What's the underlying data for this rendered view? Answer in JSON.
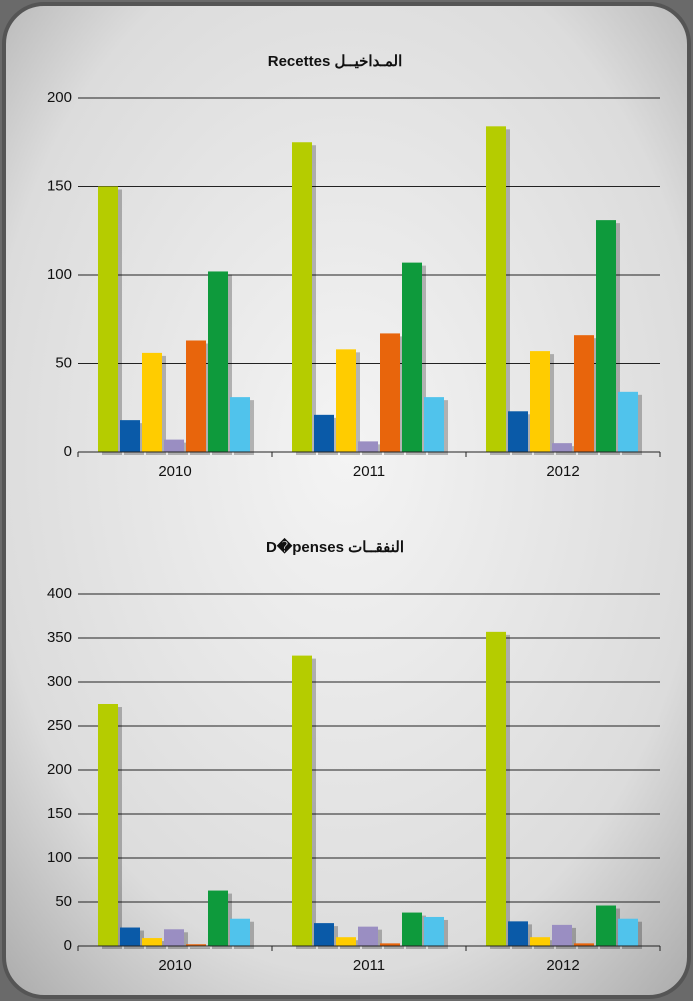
{
  "chart_data": [
    {
      "type": "bar",
      "title": "Recettes المـداخيــل",
      "categories": [
        "2010",
        "2011",
        "2012"
      ],
      "series": [
        {
          "color": "#b5cc00",
          "values": [
            150,
            175,
            184
          ]
        },
        {
          "color": "#0a5aa8",
          "values": [
            18,
            21,
            23
          ]
        },
        {
          "color": "#ffcc00",
          "values": [
            56,
            58,
            57
          ]
        },
        {
          "color": "#9a8ec2",
          "values": [
            7,
            6,
            5
          ]
        },
        {
          "color": "#e8650c",
          "values": [
            63,
            67,
            66
          ]
        },
        {
          "color": "#0e9a3c",
          "values": [
            102,
            107,
            131
          ]
        },
        {
          "color": "#50c3ec",
          "values": [
            31,
            31,
            34
          ]
        }
      ],
      "ylim": [
        0,
        200
      ],
      "yticks": [
        0,
        50,
        100,
        150,
        200
      ],
      "grid": true
    },
    {
      "type": "bar",
      "title": "D�penses النفقــات",
      "categories": [
        "2010",
        "2011",
        "2012"
      ],
      "series": [
        {
          "color": "#b5cc00",
          "values": [
            275,
            330,
            357
          ]
        },
        {
          "color": "#0a5aa8",
          "values": [
            21,
            26,
            28
          ]
        },
        {
          "color": "#ffcc00",
          "values": [
            9,
            10,
            10
          ]
        },
        {
          "color": "#9a8ec2",
          "values": [
            19,
            22,
            24
          ]
        },
        {
          "color": "#e8650c",
          "values": [
            2,
            3,
            3
          ]
        },
        {
          "color": "#0e9a3c",
          "values": [
            63,
            38,
            46
          ]
        },
        {
          "color": "#50c3ec",
          "values": [
            31,
            33,
            31
          ]
        }
      ],
      "ylim": [
        0,
        400
      ],
      "yticks": [
        0,
        50,
        100,
        150,
        200,
        250,
        300,
        350,
        400
      ],
      "grid": true
    }
  ]
}
